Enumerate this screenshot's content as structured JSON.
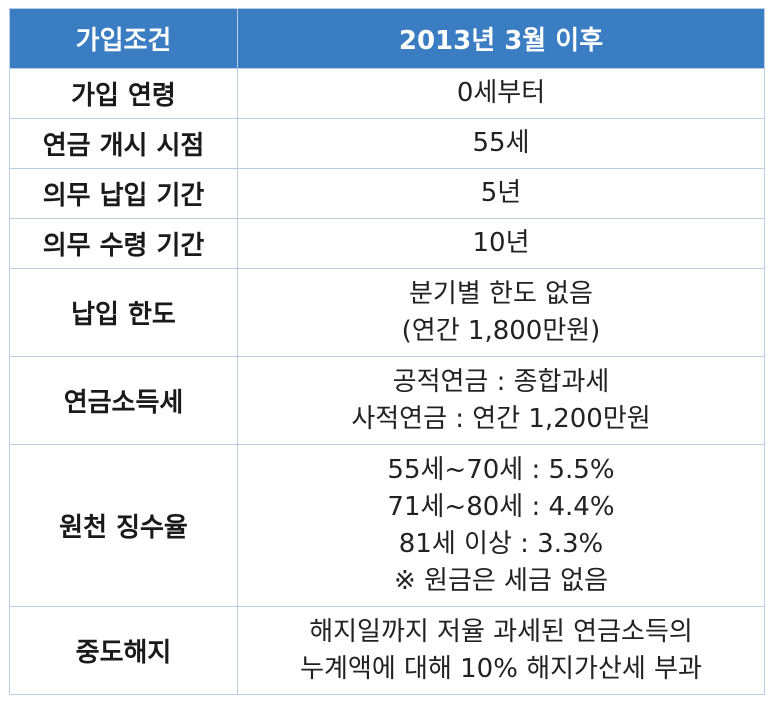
{
  "header": {
    "col1": "가입조건",
    "col2": "2013년 3월 이후"
  },
  "rows": [
    {
      "label": "가입 연령",
      "lines": [
        "0세부터"
      ]
    },
    {
      "label": "연금 개시 시점",
      "lines": [
        "55세"
      ]
    },
    {
      "label": "의무 납입 기간",
      "lines": [
        "5년"
      ]
    },
    {
      "label": "의무 수령 기간",
      "lines": [
        "10년"
      ]
    },
    {
      "label": "납입 한도",
      "lines": [
        "분기별 한도 없음",
        "(연간 1,800만원)"
      ]
    },
    {
      "label": "연금소득세",
      "lines": [
        "공적연금 : 종합과세",
        "사적연금 : 연간 1,200만원"
      ]
    },
    {
      "label": "원천 징수율",
      "lines": [
        "55세~70세 : 5.5%",
        "71세~80세 : 4.4%",
        "81세 이상 : 3.3%",
        "※ 원금은 세금 없음"
      ]
    },
    {
      "label": "중도해지",
      "lines": [
        "해지일까지 저율 과세된 연금소득의",
        "누계액에 대해 10% 해지가산세 부과"
      ]
    }
  ],
  "colors": {
    "header_bg": "#3a7dc2",
    "header_text": "#ffffff",
    "border": "#b9cde4"
  }
}
